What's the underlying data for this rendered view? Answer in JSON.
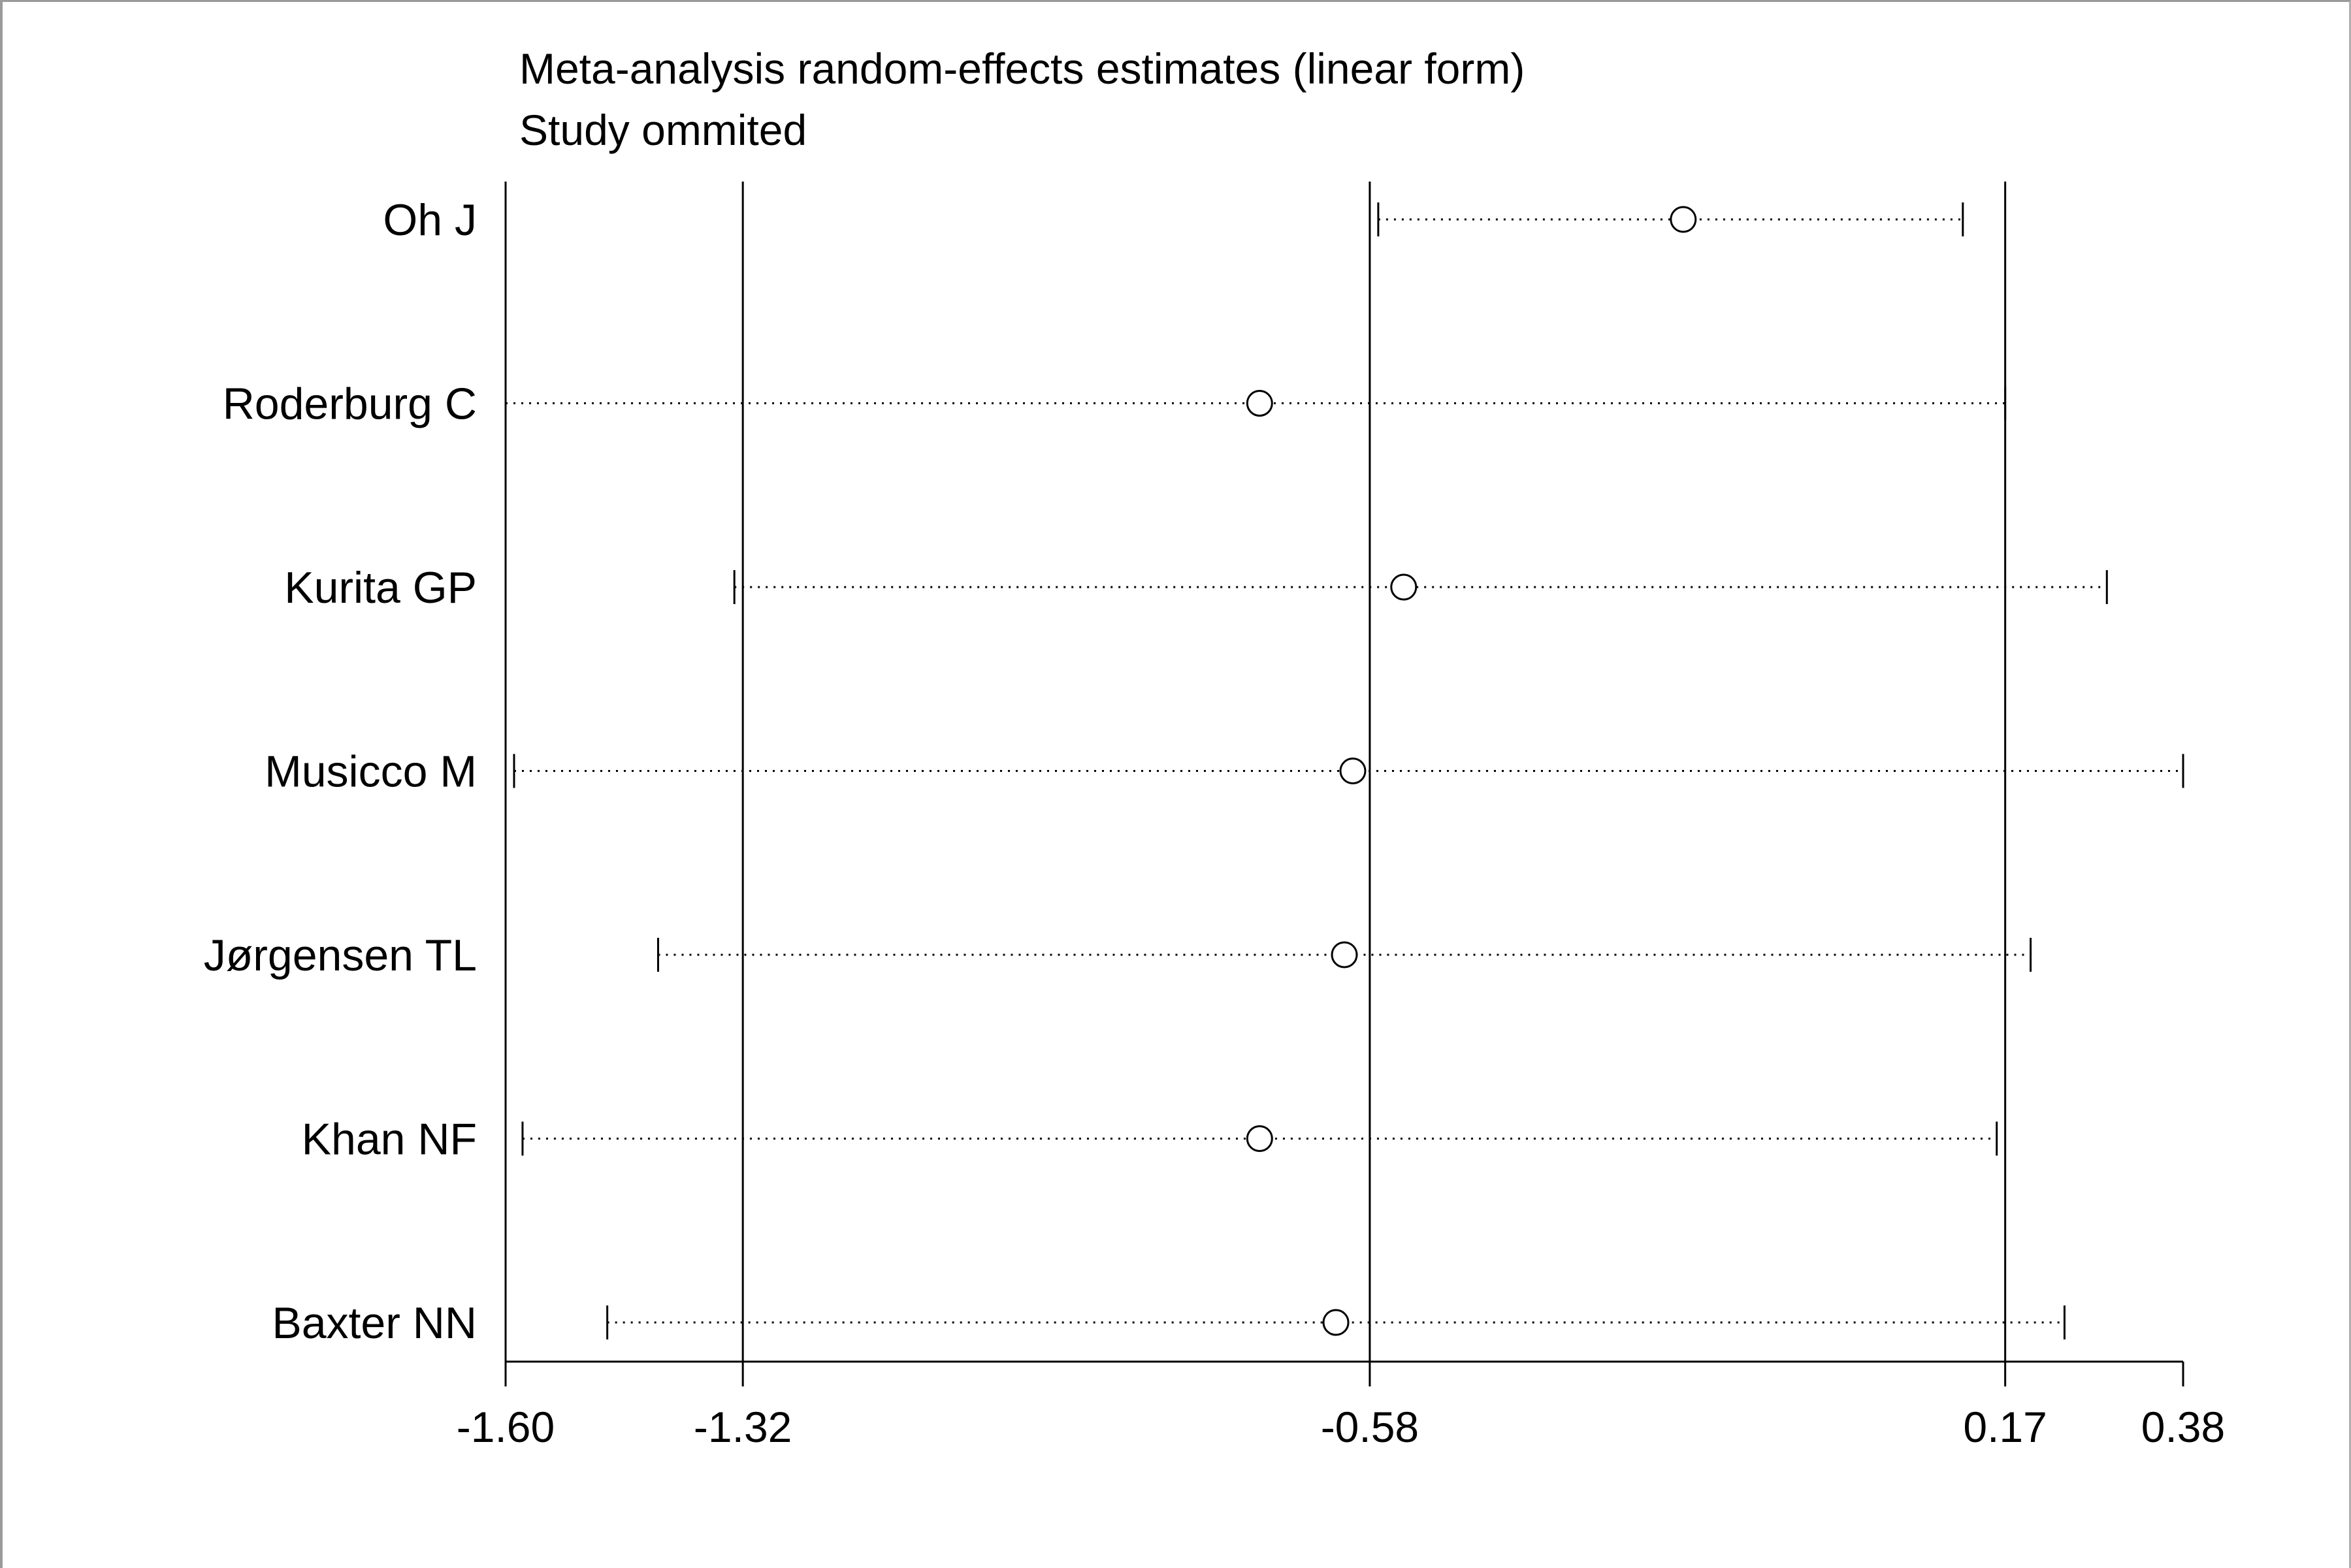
{
  "chart_data": {
    "type": "forest",
    "title": "Meta-analysis random-effects estimates (linear form)",
    "subtitle": "Study ommited",
    "xlim": [
      -1.6,
      0.38
    ],
    "xticks": [
      "-1.60",
      "-1.32",
      "-0.58",
      "0.17",
      "0.38"
    ],
    "xtick_values": [
      -1.6,
      -1.32,
      -0.58,
      0.17,
      0.38
    ],
    "reference_lines": [
      -1.32,
      -0.58,
      0.17
    ],
    "studies": [
      {
        "label": "Oh J",
        "estimate": -0.21,
        "lower": -0.57,
        "upper": 0.12
      },
      {
        "label": "Roderburg C",
        "estimate": -0.71,
        "lower": -1.6,
        "upper": 0.17
      },
      {
        "label": "Kurita GP",
        "estimate": -0.54,
        "lower": -1.33,
        "upper": 0.29
      },
      {
        "label": "Musicco M",
        "estimate": -0.6,
        "lower": -1.59,
        "upper": 0.38
      },
      {
        "label": "Jørgensen TL",
        "estimate": -0.61,
        "lower": -1.42,
        "upper": 0.2
      },
      {
        "label": "Khan NF",
        "estimate": -0.71,
        "lower": -1.58,
        "upper": 0.16
      },
      {
        "label": "Baxter NN",
        "estimate": -0.62,
        "lower": -1.48,
        "upper": 0.24
      }
    ],
    "grid": false
  }
}
